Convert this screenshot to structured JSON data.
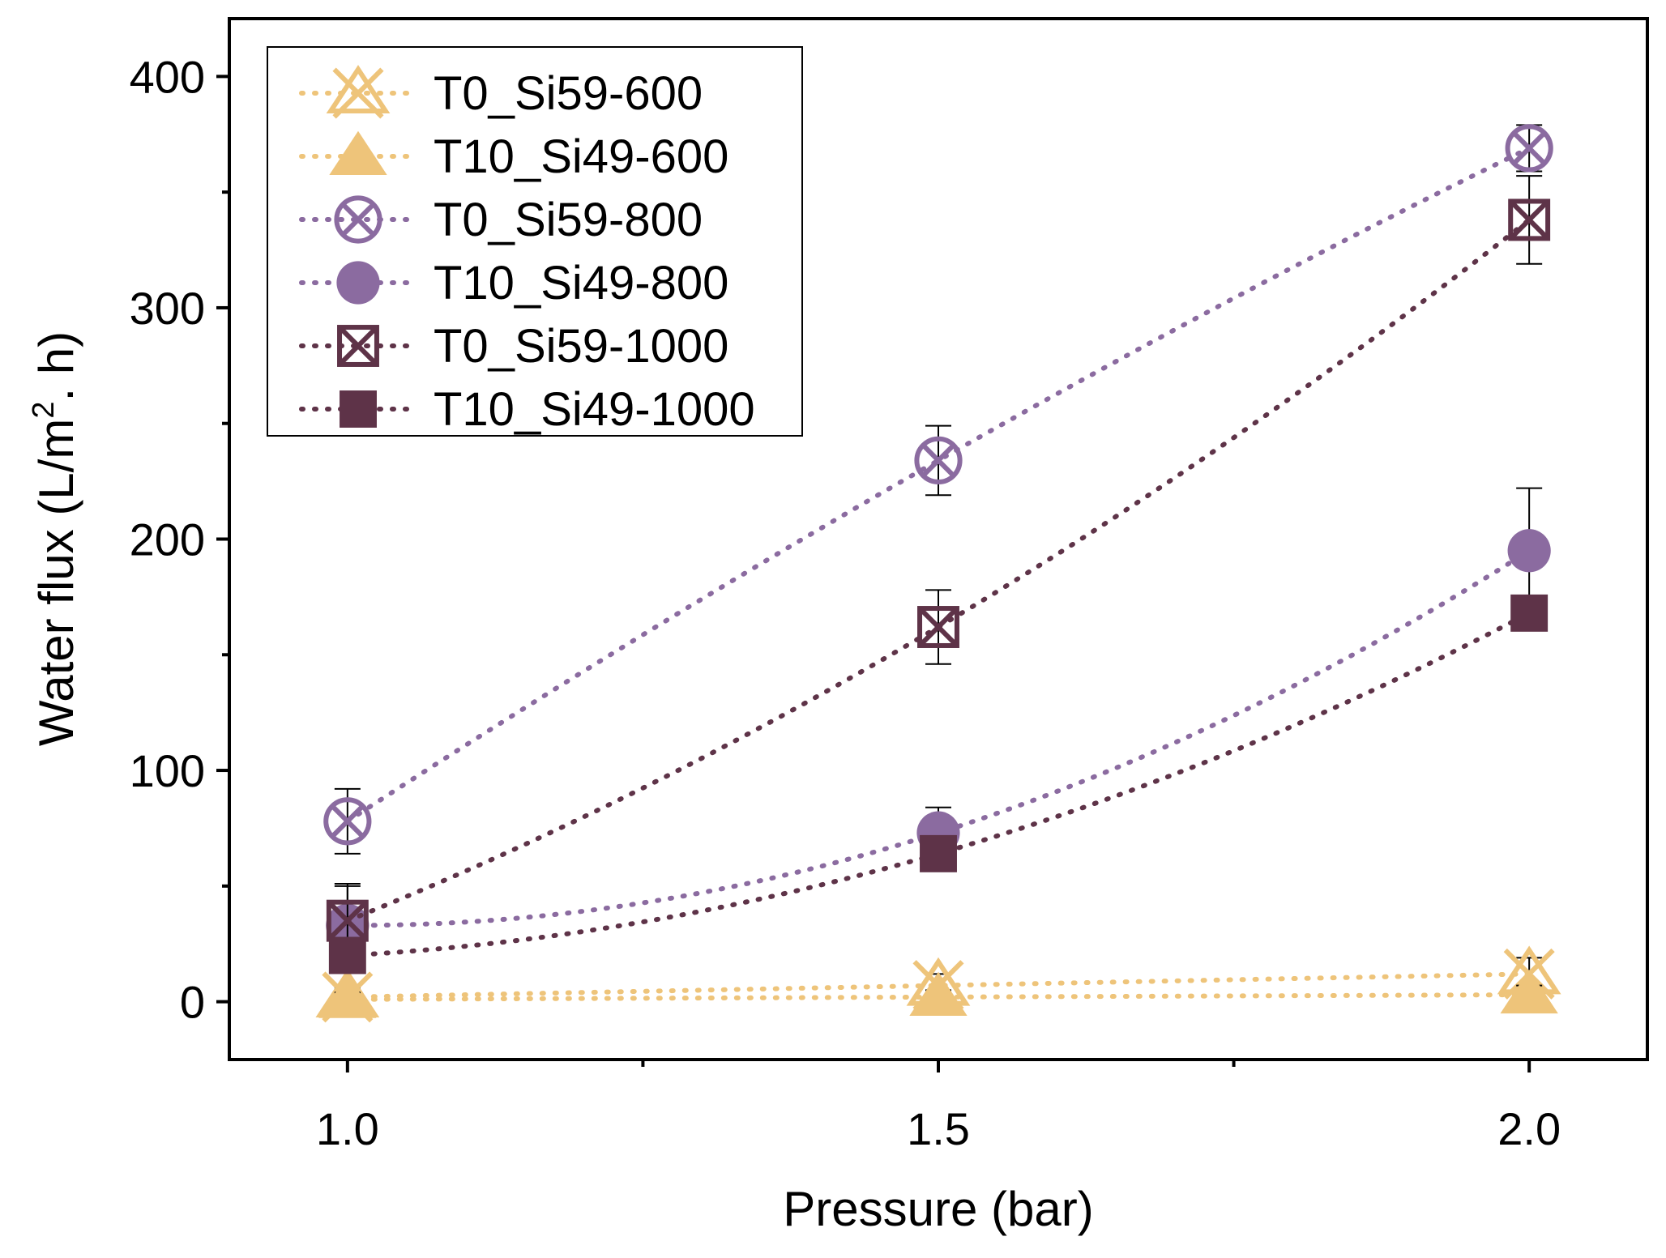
{
  "chart_data": {
    "type": "scatter",
    "title": "",
    "xlabel": "Pressure (bar)",
    "ylabel_parts": [
      "Water flux (L/m",
      "2",
      ". h)"
    ],
    "xlim": [
      0.9,
      2.1
    ],
    "ylim": [
      -25,
      425
    ],
    "x_ticks": [
      1.0,
      1.5,
      2.0
    ],
    "x_tick_labels": [
      "1.0",
      "1.5",
      "2.0"
    ],
    "x_minor_ticks": [
      1.25,
      1.75
    ],
    "y_ticks": [
      0,
      100,
      200,
      300,
      400
    ],
    "y_tick_labels": [
      "0",
      "100",
      "200",
      "300",
      "400"
    ],
    "y_minor_ticks": [
      50,
      150,
      250,
      350
    ],
    "legend_position": "top-left",
    "series": [
      {
        "name": "T0_Si59-600",
        "marker": "triangle-x-open",
        "color": "#EEC47A",
        "x": [
          1.0,
          1.5,
          2.0
        ],
        "y": [
          2,
          7,
          12
        ],
        "err": [
          4,
          5,
          7
        ]
      },
      {
        "name": "T10_Si49-600",
        "marker": "triangle-filled",
        "color": "#EEC47A",
        "x": [
          1.0,
          1.5,
          2.0
        ],
        "y": [
          1,
          2,
          3
        ],
        "err": [
          3,
          3,
          4
        ]
      },
      {
        "name": "T0_Si59-800",
        "marker": "circle-x-open",
        "color": "#8B6BA0",
        "x": [
          1.0,
          1.5,
          2.0
        ],
        "y": [
          78,
          234,
          369
        ],
        "err": [
          14,
          15,
          10
        ]
      },
      {
        "name": "T10_Si49-800",
        "marker": "circle-filled",
        "color": "#8B6BA0",
        "x": [
          1.0,
          1.5,
          2.0
        ],
        "y": [
          33,
          73,
          195
        ],
        "err": [
          18,
          11,
          27
        ]
      },
      {
        "name": "T0_Si59-1000",
        "marker": "square-x-open",
        "color": "#5E3348",
        "x": [
          1.0,
          1.5,
          2.0
        ],
        "y": [
          35,
          162,
          338
        ],
        "err": [
          15,
          16,
          19
        ]
      },
      {
        "name": "T10_Si49-1000",
        "marker": "square-filled",
        "color": "#5E3348",
        "x": [
          1.0,
          1.5,
          2.0
        ],
        "y": [
          20,
          64,
          168
        ],
        "err": [
          6,
          5,
          6
        ]
      }
    ]
  }
}
